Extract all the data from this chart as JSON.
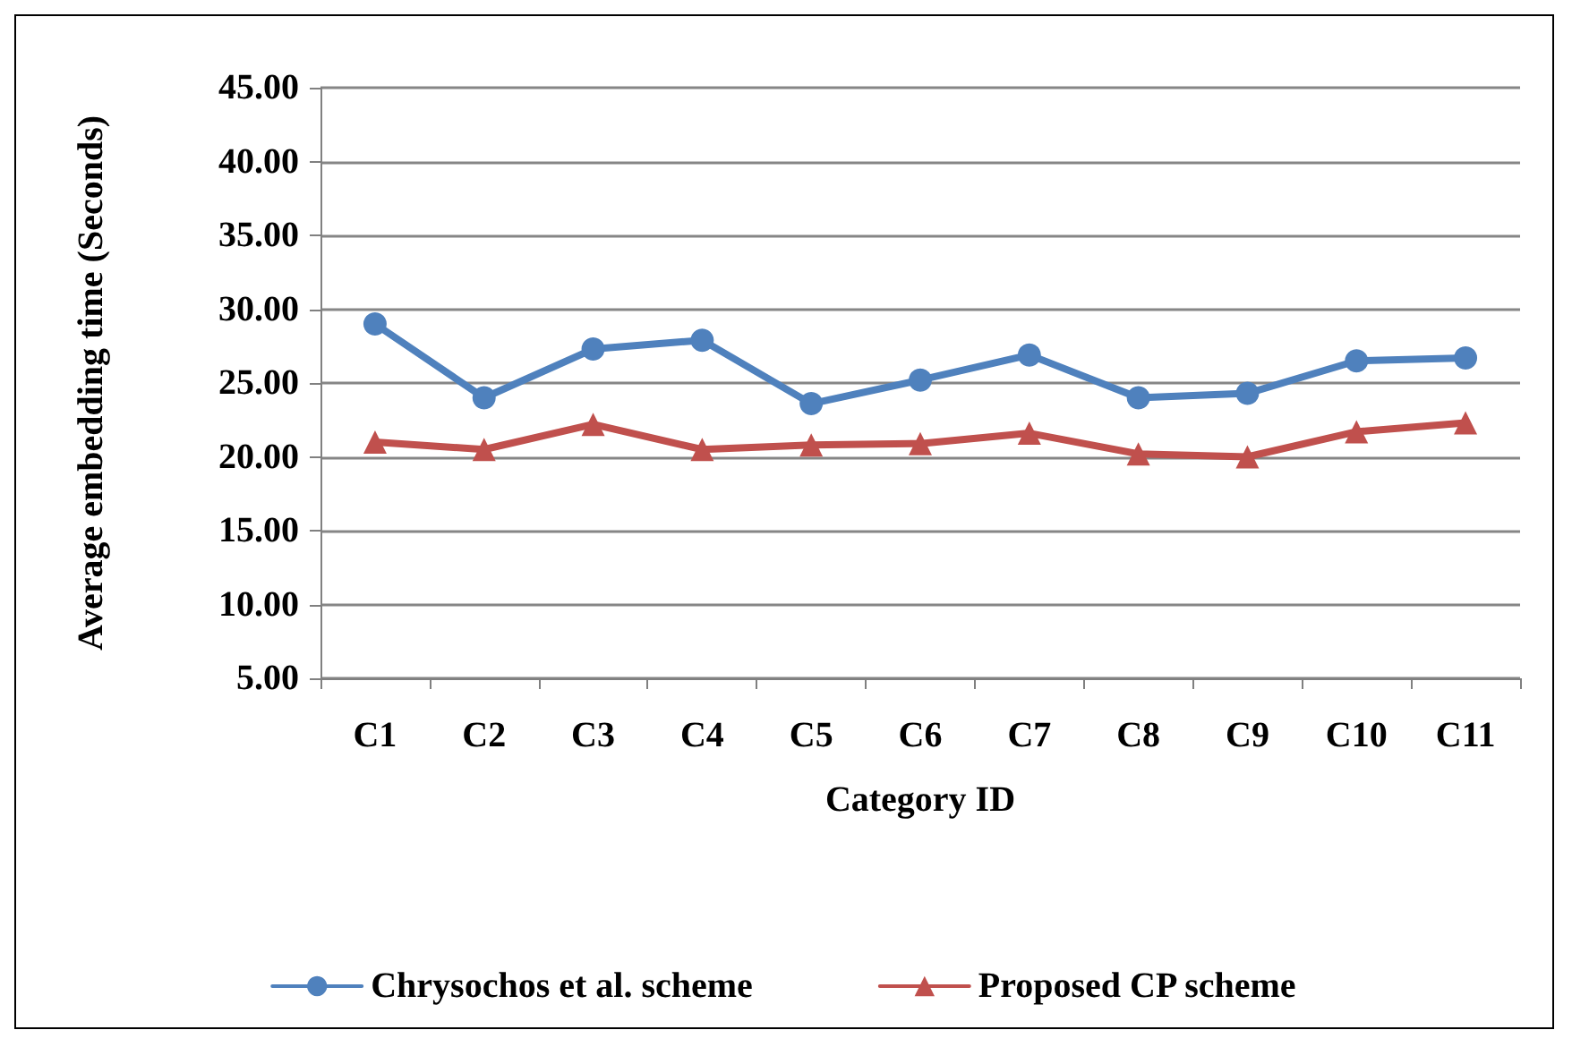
{
  "chart_data": {
    "type": "line",
    "xlabel": "Category ID",
    "ylabel": "Average embedding time (Seconds)",
    "categories": [
      "C1",
      "C2",
      "C3",
      "C4",
      "C5",
      "C6",
      "C7",
      "C8",
      "C9",
      "C10",
      "C11"
    ],
    "series": [
      {
        "name": "Chrysochos et al. scheme",
        "color": "#4f81bd",
        "marker": "circle",
        "values": [
          29.0,
          24.0,
          27.3,
          27.9,
          23.6,
          25.2,
          26.9,
          24.0,
          24.3,
          26.5,
          26.7
        ]
      },
      {
        "name": "Proposed CP scheme",
        "color": "#c0504d",
        "marker": "triangle",
        "values": [
          21.0,
          20.5,
          22.2,
          20.5,
          20.8,
          20.9,
          21.6,
          20.2,
          20.0,
          21.7,
          22.3
        ]
      }
    ],
    "ylim": [
      5,
      45
    ],
    "yticks": [
      {
        "value": 5,
        "label": "5.00"
      },
      {
        "value": 10,
        "label": "10.00"
      },
      {
        "value": 15,
        "label": "15.00"
      },
      {
        "value": 20,
        "label": "20.00"
      },
      {
        "value": 25,
        "label": "25.00"
      },
      {
        "value": 30,
        "label": "30.00"
      },
      {
        "value": 35,
        "label": "35.00"
      },
      {
        "value": 40,
        "label": "40.00"
      },
      {
        "value": 45,
        "label": "45.00"
      }
    ],
    "grid": "y",
    "legend": "bottom",
    "line_style": "solid"
  }
}
